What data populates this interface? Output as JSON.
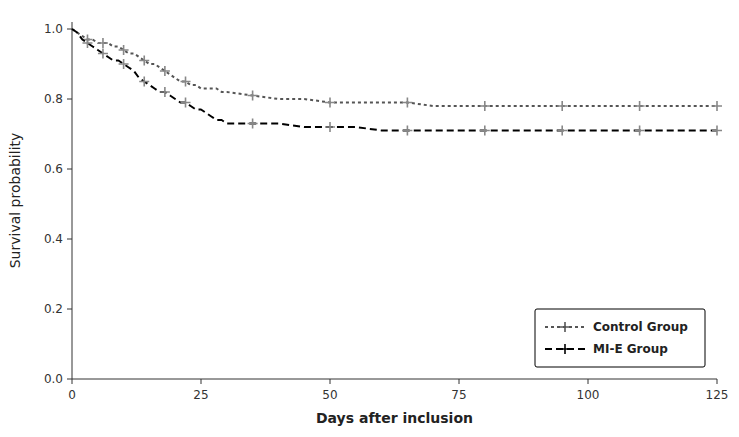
{
  "chart_data": {
    "type": "line",
    "xlabel": "Days after inclusion",
    "ylabel": "Survival probability",
    "xlim": [
      0,
      125
    ],
    "ylim": [
      0.0,
      1.02
    ],
    "xticks": [
      0,
      25,
      50,
      75,
      100,
      125
    ],
    "yticks": [
      {
        "value": 0.0,
        "label": "0.0"
      },
      0.2,
      0.4,
      0.6,
      0.8,
      {
        "value": 1.0,
        "label": "1.0"
      }
    ],
    "grid": false,
    "legend": "lower right",
    "x": [
      0,
      1,
      2,
      3,
      4,
      5,
      6,
      7,
      8,
      9,
      10,
      11,
      12,
      13,
      14,
      15,
      16,
      17,
      18,
      19,
      20,
      21,
      22,
      23,
      24,
      25,
      26,
      27,
      28,
      29,
      30,
      35,
      40,
      45,
      50,
      55,
      60,
      65,
      70,
      75,
      80,
      85,
      90,
      95,
      100,
      105,
      110,
      115,
      120,
      125
    ],
    "series": [
      {
        "name": "Control Group",
        "type": "line",
        "color": "#555555",
        "line_style": "dotted",
        "marker": "+",
        "values": [
          1.0,
          0.99,
          0.98,
          0.97,
          0.97,
          0.96,
          0.96,
          0.96,
          0.95,
          0.95,
          0.94,
          0.93,
          0.93,
          0.92,
          0.91,
          0.9,
          0.9,
          0.89,
          0.88,
          0.87,
          0.86,
          0.85,
          0.85,
          0.84,
          0.84,
          0.83,
          0.83,
          0.83,
          0.83,
          0.82,
          0.82,
          0.81,
          0.8,
          0.8,
          0.79,
          0.79,
          0.79,
          0.79,
          0.78,
          0.78,
          0.78,
          0.78,
          0.78,
          0.78,
          0.78,
          0.78,
          0.78,
          0.78,
          0.78,
          0.78
        ]
      },
      {
        "type": "scatter",
        "color": "#888888",
        "marker": "+",
        "x": [
          3,
          6,
          10,
          14,
          18,
          22,
          35,
          50,
          65,
          80,
          95,
          110,
          125
        ],
        "values": [
          0.97,
          0.96,
          0.94,
          0.91,
          0.88,
          0.85,
          0.81,
          0.79,
          0.79,
          0.78,
          0.78,
          0.78,
          0.78
        ]
      },
      {
        "name": "MI-E Group",
        "type": "line",
        "color": "#000000",
        "line_style": "dashed",
        "marker": "+",
        "values": [
          1.0,
          0.99,
          0.97,
          0.96,
          0.95,
          0.94,
          0.93,
          0.92,
          0.91,
          0.91,
          0.9,
          0.89,
          0.88,
          0.86,
          0.85,
          0.84,
          0.83,
          0.82,
          0.82,
          0.81,
          0.8,
          0.79,
          0.79,
          0.78,
          0.77,
          0.77,
          0.76,
          0.75,
          0.74,
          0.74,
          0.73,
          0.73,
          0.73,
          0.72,
          0.72,
          0.72,
          0.71,
          0.71,
          0.71,
          0.71,
          0.71,
          0.71,
          0.71,
          0.71,
          0.71,
          0.71,
          0.71,
          0.71,
          0.71,
          0.71
        ]
      },
      {
        "type": "scatter",
        "color": "#888888",
        "marker": "+",
        "x": [
          3,
          6,
          10,
          14,
          18,
          22,
          35,
          50,
          65,
          80,
          95,
          110,
          125
        ],
        "values": [
          0.96,
          0.93,
          0.9,
          0.85,
          0.82,
          0.79,
          0.73,
          0.72,
          0.71,
          0.71,
          0.71,
          0.71,
          0.71
        ]
      }
    ]
  }
}
